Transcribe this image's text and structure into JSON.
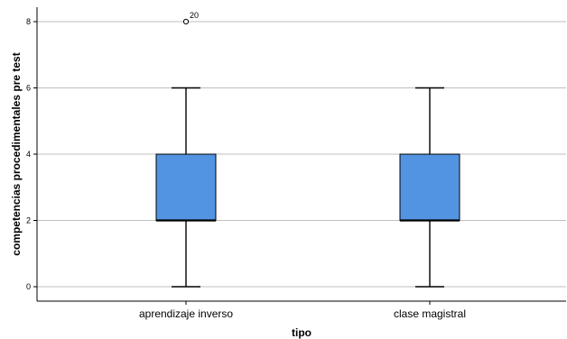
{
  "chart_data": {
    "type": "boxplot",
    "xlabel": "tipo",
    "ylabel": "competencias procedimentales pre test",
    "ylim": [
      -0.5,
      8.3
    ],
    "yticks": [
      "0",
      "2",
      "4",
      "6",
      "8"
    ],
    "grid": true,
    "box_color": "#5294e2",
    "categories": [
      "aprendizaje inverso",
      "clase magistral"
    ],
    "boxes": [
      {
        "category": "aprendizaje inverso",
        "whisker_low": 0,
        "q1": 2,
        "median": 2,
        "q3": 4,
        "whisker_high": 6,
        "outliers": [
          {
            "value": 8,
            "label": "20"
          }
        ]
      },
      {
        "category": "clase magistral",
        "whisker_low": 0,
        "q1": 2,
        "median": 2,
        "q3": 4,
        "whisker_high": 6,
        "outliers": []
      }
    ]
  }
}
